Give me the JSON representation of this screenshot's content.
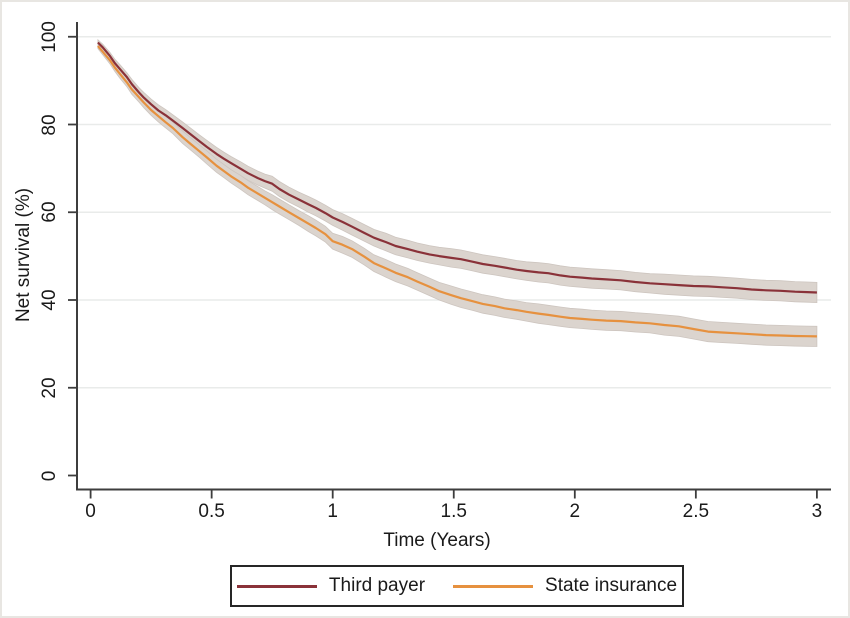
{
  "figure": {
    "background_color": "#ffffff",
    "outer_border_color": "#e8e6e2",
    "axis_color": "#3d3d3d",
    "gridline_color": "#e9ebea",
    "text_color": "#1a1a1a",
    "legend_border_color": "#262626"
  },
  "chart_data": {
    "type": "line",
    "title": "",
    "xlabel": "Time (Years)",
    "ylabel": "Net survival (%)",
    "xlim": [
      0,
      3
    ],
    "ylim": [
      0,
      100
    ],
    "x_ticks": [
      0,
      0.5,
      1,
      1.5,
      2,
      2.5,
      3
    ],
    "x_tick_labels": [
      "0",
      "0.5",
      "1",
      "1.5",
      "2",
      "2.5",
      "3"
    ],
    "y_ticks": [
      0,
      20,
      40,
      60,
      80,
      100
    ],
    "y_tick_labels": [
      "0",
      "20",
      "40",
      "60",
      "80",
      "100"
    ],
    "grid": "horizontal-only",
    "gridlines_at": [
      20,
      40,
      60,
      80,
      100
    ],
    "legend_position": "bottom-center-boxed",
    "confidence_band_color": "#dbd4ce",
    "confidence_band_edge_color": "#cdc5bf",
    "series": [
      {
        "name": "Third payer",
        "color": "#8a3239",
        "points_t_value_bandhalfwidth": [
          [
            0.03,
            98.7,
            0.6
          ],
          [
            0.05,
            97.6,
            0.7
          ],
          [
            0.08,
            95.6,
            0.8
          ],
          [
            0.1,
            94.0,
            0.9
          ],
          [
            0.12,
            92.7,
            1.0
          ],
          [
            0.15,
            90.8,
            1.0
          ],
          [
            0.17,
            89.2,
            1.1
          ],
          [
            0.2,
            87.3,
            1.1
          ],
          [
            0.22,
            86.1,
            1.2
          ],
          [
            0.25,
            84.6,
            1.2
          ],
          [
            0.28,
            83.2,
            1.3
          ],
          [
            0.31,
            82.1,
            1.3
          ],
          [
            0.34,
            80.9,
            1.3
          ],
          [
            0.38,
            79.2,
            1.4
          ],
          [
            0.41,
            77.9,
            1.4
          ],
          [
            0.45,
            76.2,
            1.4
          ],
          [
            0.48,
            74.9,
            1.5
          ],
          [
            0.52,
            73.3,
            1.5
          ],
          [
            0.55,
            72.2,
            1.5
          ],
          [
            0.58,
            71.2,
            1.5
          ],
          [
            0.62,
            69.9,
            1.6
          ],
          [
            0.65,
            68.9,
            1.6
          ],
          [
            0.69,
            67.8,
            1.6
          ],
          [
            0.72,
            67.1,
            1.6
          ],
          [
            0.75,
            66.5,
            1.7
          ],
          [
            0.78,
            65.3,
            1.7
          ],
          [
            0.82,
            64.0,
            1.7
          ],
          [
            0.86,
            62.9,
            1.7
          ],
          [
            0.9,
            61.8,
            1.8
          ],
          [
            0.93,
            61.0,
            1.8
          ],
          [
            0.97,
            59.8,
            1.8
          ],
          [
            1.0,
            58.8,
            1.8
          ],
          [
            1.04,
            57.8,
            1.9
          ],
          [
            1.08,
            56.7,
            1.9
          ],
          [
            1.13,
            55.3,
            1.9
          ],
          [
            1.17,
            54.2,
            1.9
          ],
          [
            1.22,
            53.2,
            2.0
          ],
          [
            1.26,
            52.3,
            2.0
          ],
          [
            1.31,
            51.6,
            2.0
          ],
          [
            1.35,
            51.0,
            2.0
          ],
          [
            1.4,
            50.4,
            2.0
          ],
          [
            1.44,
            50.0,
            2.0
          ],
          [
            1.49,
            49.6,
            2.1
          ],
          [
            1.53,
            49.3,
            2.1
          ],
          [
            1.58,
            48.7,
            2.1
          ],
          [
            1.62,
            48.2,
            2.1
          ],
          [
            1.67,
            47.8,
            2.1
          ],
          [
            1.71,
            47.4,
            2.1
          ],
          [
            1.76,
            46.9,
            2.1
          ],
          [
            1.8,
            46.6,
            2.1
          ],
          [
            1.85,
            46.3,
            2.2
          ],
          [
            1.89,
            46.1,
            2.2
          ],
          [
            1.94,
            45.6,
            2.2
          ],
          [
            1.98,
            45.3,
            2.2
          ],
          [
            2.03,
            45.1,
            2.2
          ],
          [
            2.07,
            44.9,
            2.2
          ],
          [
            2.13,
            44.7,
            2.2
          ],
          [
            2.19,
            44.5,
            2.2
          ],
          [
            2.25,
            44.1,
            2.2
          ],
          [
            2.31,
            43.8,
            2.2
          ],
          [
            2.37,
            43.6,
            2.3
          ],
          [
            2.43,
            43.4,
            2.3
          ],
          [
            2.49,
            43.2,
            2.3
          ],
          [
            2.55,
            43.1,
            2.3
          ],
          [
            2.61,
            42.9,
            2.3
          ],
          [
            2.67,
            42.7,
            2.3
          ],
          [
            2.73,
            42.4,
            2.3
          ],
          [
            2.79,
            42.2,
            2.3
          ],
          [
            2.85,
            42.1,
            2.3
          ],
          [
            2.91,
            41.9,
            2.3
          ],
          [
            2.96,
            41.8,
            2.3
          ],
          [
            3.0,
            41.7,
            2.3
          ]
        ]
      },
      {
        "name": "State insurance",
        "color": "#e6913f",
        "points_t_value_bandhalfwidth": [
          [
            0.03,
            97.9,
            0.6
          ],
          [
            0.05,
            96.6,
            0.7
          ],
          [
            0.08,
            94.6,
            0.8
          ],
          [
            0.1,
            93.0,
            0.9
          ],
          [
            0.12,
            91.6,
            1.0
          ],
          [
            0.15,
            89.6,
            1.0
          ],
          [
            0.17,
            88.0,
            1.1
          ],
          [
            0.2,
            86.2,
            1.1
          ],
          [
            0.22,
            85.0,
            1.2
          ],
          [
            0.25,
            83.3,
            1.2
          ],
          [
            0.28,
            81.9,
            1.3
          ],
          [
            0.31,
            80.5,
            1.3
          ],
          [
            0.34,
            79.2,
            1.3
          ],
          [
            0.38,
            77.1,
            1.4
          ],
          [
            0.41,
            75.7,
            1.4
          ],
          [
            0.45,
            73.9,
            1.4
          ],
          [
            0.48,
            72.5,
            1.5
          ],
          [
            0.52,
            70.6,
            1.5
          ],
          [
            0.55,
            69.4,
            1.5
          ],
          [
            0.58,
            68.2,
            1.5
          ],
          [
            0.62,
            66.8,
            1.6
          ],
          [
            0.65,
            65.6,
            1.6
          ],
          [
            0.69,
            64.3,
            1.6
          ],
          [
            0.72,
            63.3,
            1.6
          ],
          [
            0.75,
            62.3,
            1.7
          ],
          [
            0.78,
            61.3,
            1.7
          ],
          [
            0.82,
            60.0,
            1.7
          ],
          [
            0.86,
            58.7,
            1.7
          ],
          [
            0.9,
            57.4,
            1.8
          ],
          [
            0.93,
            56.4,
            1.8
          ],
          [
            0.97,
            55.0,
            1.8
          ],
          [
            1.0,
            53.4,
            1.8
          ],
          [
            1.04,
            52.6,
            1.9
          ],
          [
            1.08,
            51.6,
            1.9
          ],
          [
            1.13,
            49.9,
            1.9
          ],
          [
            1.17,
            48.4,
            1.9
          ],
          [
            1.22,
            47.2,
            2.0
          ],
          [
            1.26,
            46.2,
            2.0
          ],
          [
            1.31,
            45.2,
            2.0
          ],
          [
            1.35,
            44.2,
            2.0
          ],
          [
            1.4,
            43.0,
            2.0
          ],
          [
            1.44,
            42.0,
            2.0
          ],
          [
            1.49,
            41.1,
            2.1
          ],
          [
            1.53,
            40.4,
            2.1
          ],
          [
            1.58,
            39.7,
            2.1
          ],
          [
            1.62,
            39.1,
            2.1
          ],
          [
            1.67,
            38.6,
            2.1
          ],
          [
            1.71,
            38.1,
            2.1
          ],
          [
            1.76,
            37.7,
            2.1
          ],
          [
            1.8,
            37.3,
            2.1
          ],
          [
            1.85,
            36.9,
            2.2
          ],
          [
            1.89,
            36.6,
            2.2
          ],
          [
            1.94,
            36.2,
            2.2
          ],
          [
            1.98,
            35.9,
            2.2
          ],
          [
            2.03,
            35.7,
            2.2
          ],
          [
            2.07,
            35.5,
            2.2
          ],
          [
            2.13,
            35.3,
            2.2
          ],
          [
            2.19,
            35.2,
            2.2
          ],
          [
            2.25,
            34.9,
            2.2
          ],
          [
            2.31,
            34.7,
            2.2
          ],
          [
            2.37,
            34.3,
            2.3
          ],
          [
            2.43,
            34.0,
            2.3
          ],
          [
            2.49,
            33.4,
            2.3
          ],
          [
            2.55,
            32.8,
            2.3
          ],
          [
            2.61,
            32.6,
            2.3
          ],
          [
            2.67,
            32.4,
            2.3
          ],
          [
            2.73,
            32.2,
            2.3
          ],
          [
            2.79,
            32.0,
            2.3
          ],
          [
            2.85,
            31.9,
            2.3
          ],
          [
            2.91,
            31.8,
            2.3
          ],
          [
            2.96,
            31.75,
            2.3
          ],
          [
            3.0,
            31.7,
            2.3
          ]
        ]
      }
    ]
  }
}
